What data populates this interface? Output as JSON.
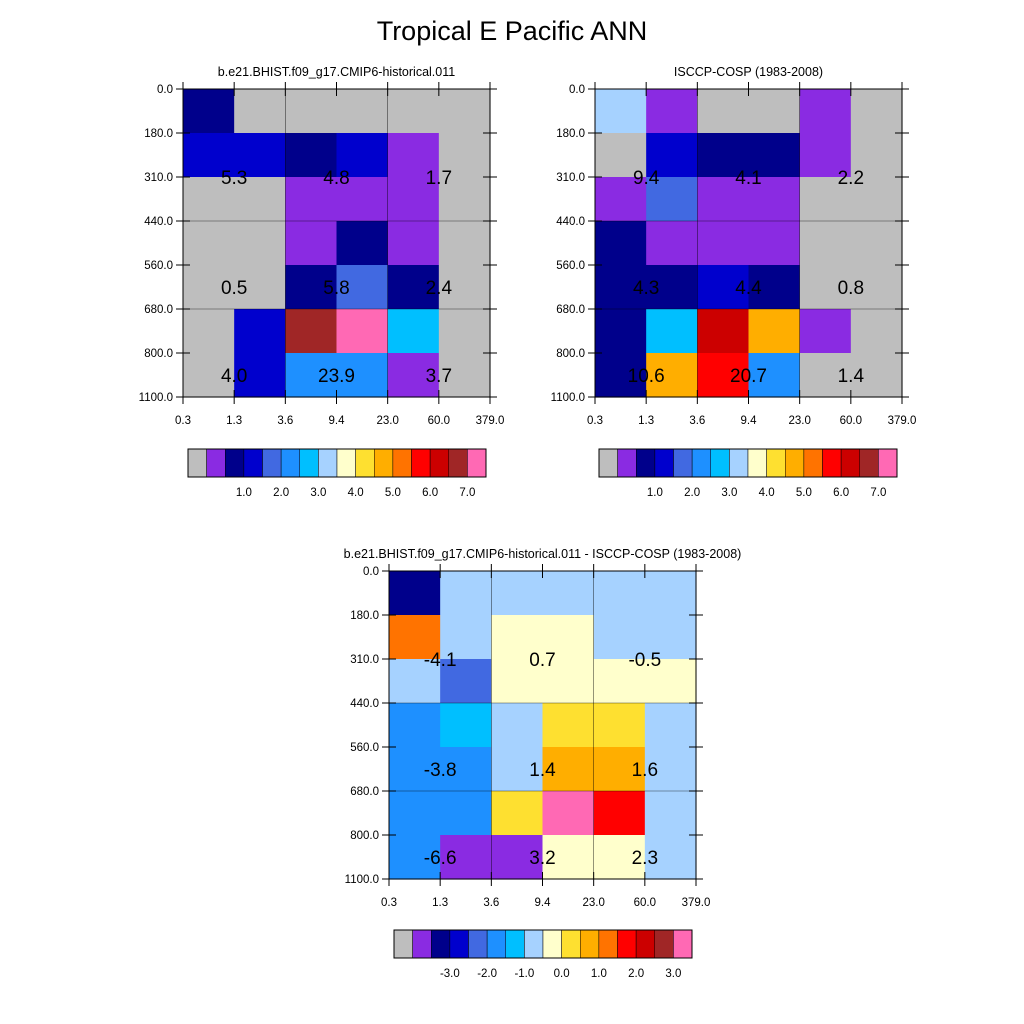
{
  "figure": {
    "title": "Tropical E Pacific ANN",
    "colors": {
      "missing": "#bebebe",
      "model_palette": [
        "#bebebe",
        "#8a2be2",
        "#00008b",
        "#0000cd",
        "#4169e1",
        "#1e90ff",
        "#00bfff",
        "#a6d2ff",
        "#ffffcc",
        "#fee030",
        "#ffae00",
        "#ff7300",
        "#ff0000",
        "#cc0000",
        "#a02626",
        "#ff69b4"
      ],
      "diff_palette": [
        "#bebebe",
        "#8a2be2",
        "#00008b",
        "#0000cd",
        "#4169e1",
        "#1e90ff",
        "#00bfff",
        "#a6d2ff",
        "#ffffcc",
        "#fee030",
        "#ffae00",
        "#ff7300",
        "#ff0000",
        "#cc0000",
        "#a02626",
        "#ff69b4"
      ]
    }
  },
  "chart_data": [
    {
      "type": "heatmap",
      "title": "b.e21.BHIST.f09_g17.CMIP6-historical.011",
      "x_ticks": [
        "0.3",
        "1.3",
        "3.6",
        "9.4",
        "23.0",
        "60.0",
        "379.0"
      ],
      "y_ticks": [
        "0.0",
        "180.0",
        "310.0",
        "440.0",
        "560.0",
        "680.0",
        "800.0",
        "1100.0"
      ],
      "grid": true,
      "cells": [
        [
          2,
          0,
          0,
          0,
          0,
          0
        ],
        [
          3,
          3,
          2,
          3,
          1,
          0
        ],
        [
          0,
          0,
          1,
          1,
          1,
          0
        ],
        [
          0,
          0,
          1,
          2,
          1,
          0
        ],
        [
          0,
          0,
          2,
          4,
          2,
          0
        ],
        [
          0,
          3,
          14,
          15,
          6,
          0
        ],
        [
          0,
          3,
          5,
          5,
          1,
          0
        ]
      ],
      "annotations": [
        {
          "label": "5.3",
          "col": 0,
          "row": 1.5
        },
        {
          "label": "4.8",
          "col": 2,
          "row": 1.5
        },
        {
          "label": "1.7",
          "col": 4,
          "row": 1.5
        },
        {
          "label": "0.5",
          "col": 0,
          "row": 4
        },
        {
          "label": "5.8",
          "col": 2,
          "row": 4
        },
        {
          "label": "2.4",
          "col": 4,
          "row": 4
        },
        {
          "label": "4.0",
          "col": 0,
          "row": 6
        },
        {
          "label": "23.9",
          "col": 2,
          "row": 6
        },
        {
          "label": "3.7",
          "col": 4,
          "row": 6
        }
      ],
      "colorbar": {
        "labels": [
          "1.0",
          "2.0",
          "3.0",
          "4.0",
          "5.0",
          "6.0",
          "7.0"
        ],
        "palette": "model_palette"
      }
    },
    {
      "type": "heatmap",
      "title": "ISCCP-COSP (1983-2008)",
      "x_ticks": [
        "0.3",
        "1.3",
        "3.6",
        "9.4",
        "23.0",
        "60.0",
        "379.0"
      ],
      "y_ticks": [
        "0.0",
        "180.0",
        "310.0",
        "440.0",
        "560.0",
        "680.0",
        "800.0",
        "1100.0"
      ],
      "grid": true,
      "cells": [
        [
          7,
          1,
          0,
          0,
          1,
          0
        ],
        [
          0,
          3,
          2,
          2,
          1,
          0
        ],
        [
          1,
          4,
          1,
          1,
          0,
          0
        ],
        [
          2,
          1,
          1,
          1,
          0,
          0
        ],
        [
          2,
          2,
          3,
          2,
          0,
          0
        ],
        [
          2,
          6,
          13,
          10,
          1,
          0
        ],
        [
          2,
          10,
          12,
          5,
          0,
          0
        ]
      ],
      "annotations": [
        {
          "label": "9.4",
          "col": 0,
          "row": 1.5
        },
        {
          "label": "4.1",
          "col": 2,
          "row": 1.5
        },
        {
          "label": "2.2",
          "col": 4,
          "row": 1.5
        },
        {
          "label": "4.3",
          "col": 0,
          "row": 4
        },
        {
          "label": "4.4",
          "col": 2,
          "row": 4
        },
        {
          "label": "0.8",
          "col": 4,
          "row": 4
        },
        {
          "label": "10.6",
          "col": 0,
          "row": 6
        },
        {
          "label": "20.7",
          "col": 2,
          "row": 6
        },
        {
          "label": "1.4",
          "col": 4,
          "row": 6
        }
      ],
      "colorbar": {
        "labels": [
          "1.0",
          "2.0",
          "3.0",
          "4.0",
          "5.0",
          "6.0",
          "7.0"
        ],
        "palette": "model_palette"
      }
    },
    {
      "type": "heatmap",
      "title": "b.e21.BHIST.f09_g17.CMIP6-historical.011 - ISCCP-COSP (1983-2008)",
      "x_ticks": [
        "0.3",
        "1.3",
        "3.6",
        "9.4",
        "23.0",
        "60.0",
        "379.0"
      ],
      "y_ticks": [
        "0.0",
        "180.0",
        "310.0",
        "440.0",
        "560.0",
        "680.0",
        "800.0",
        "1100.0"
      ],
      "grid": true,
      "cells": [
        [
          2,
          7,
          7,
          7,
          7,
          7
        ],
        [
          11,
          7,
          8,
          8,
          7,
          7
        ],
        [
          7,
          4,
          8,
          8,
          8,
          8
        ],
        [
          5,
          6,
          7,
          9,
          9,
          7
        ],
        [
          5,
          5,
          7,
          10,
          10,
          7
        ],
        [
          5,
          5,
          9,
          15,
          12,
          7
        ],
        [
          5,
          1,
          1,
          8,
          8,
          7
        ]
      ],
      "annotations": [
        {
          "label": "-4.1",
          "col": 0,
          "row": 1.5
        },
        {
          "label": "0.7",
          "col": 2,
          "row": 1.5
        },
        {
          "label": "-0.5",
          "col": 4,
          "row": 1.5
        },
        {
          "label": "-3.8",
          "col": 0,
          "row": 4
        },
        {
          "label": "1.4",
          "col": 2,
          "row": 4
        },
        {
          "label": "1.6",
          "col": 4,
          "row": 4
        },
        {
          "label": "-6.6",
          "col": 0,
          "row": 6
        },
        {
          "label": "3.2",
          "col": 2,
          "row": 6
        },
        {
          "label": "2.3",
          "col": 4,
          "row": 6
        }
      ],
      "colorbar": {
        "labels": [
          "-3.0",
          "-2.0",
          "-1.0",
          "0.0",
          "1.0",
          "2.0",
          "3.0"
        ],
        "palette": "diff_palette"
      }
    }
  ]
}
